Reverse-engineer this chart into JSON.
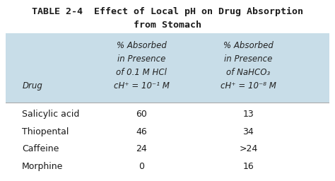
{
  "title_line1": "TABLE 2-4  Effect of Local pH on Drug Absorption",
  "title_line2": "from Stomach",
  "bg_color": "#ffffff",
  "header_bg": "#c8dde8",
  "col1_header_line1": "% Absorbed",
  "col1_header_line2": "in Presence",
  "col1_header_line3": "of 0.1 M HCl",
  "col1_header_line4": "cH⁺ = 10⁻¹ M",
  "col2_header_line1": "% Absorbed",
  "col2_header_line2": "in Presence",
  "col2_header_line3": "of NaHCO₃",
  "col2_header_line4": "cH⁺ = 10⁻⁸ M",
  "row_label": "Drug",
  "drugs": [
    "Salicylic acid",
    "Thiopental",
    "Caffeine",
    "Morphine"
  ],
  "col1_values": [
    "60",
    "46",
    "24",
    "0"
  ],
  "col2_values": [
    "13",
    "34",
    ">24",
    "16"
  ],
  "title_fontsize": 9.5,
  "header_fontsize": 8.5,
  "body_fontsize": 9,
  "title_color": "#1a1a1a",
  "header_text_color": "#222222",
  "body_text_color": "#1a1a1a",
  "divider_color": "#aaaaaa"
}
